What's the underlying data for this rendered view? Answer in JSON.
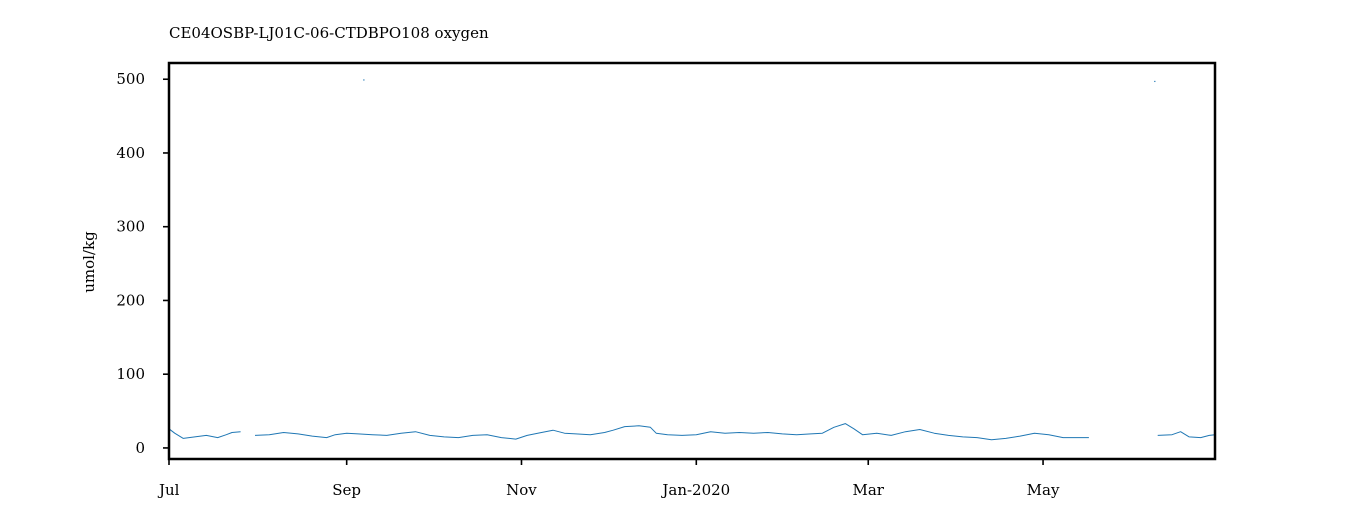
{
  "chart_data": {
    "type": "line",
    "title": "CE04OSBP-LJ01C-06-CTDBPO108 oxygen",
    "xlabel": "",
    "ylabel": "umol/kg",
    "xlim": [
      "2019-07-01",
      "2020-06-30"
    ],
    "ylim": [
      -15,
      522
    ],
    "yticks": [
      0,
      100,
      200,
      300,
      400,
      500
    ],
    "xticks": [
      {
        "date": "2019-07-01",
        "label": "Jul"
      },
      {
        "date": "2019-09-01",
        "label": "Sep"
      },
      {
        "date": "2019-11-01",
        "label": "Nov"
      },
      {
        "date": "2020-01-01",
        "label": "Jan-2020"
      },
      {
        "date": "2020-03-01",
        "label": "Mar"
      },
      {
        "date": "2020-05-01",
        "label": "May"
      }
    ],
    "grid": false,
    "series": [
      {
        "color": "#1f77b4",
        "segments": [
          [
            [
              "2019-07-01",
              26
            ],
            [
              "2019-07-03",
              20
            ],
            [
              "2019-07-06",
              13
            ],
            [
              "2019-07-10",
              15
            ],
            [
              "2019-07-14",
              17
            ],
            [
              "2019-07-18",
              14
            ],
            [
              "2019-07-21",
              18
            ],
            [
              "2019-07-23",
              21
            ],
            [
              "2019-07-26",
              22
            ]
          ],
          [
            [
              "2019-07-31",
              17
            ],
            [
              "2019-08-05",
              18
            ],
            [
              "2019-08-10",
              21
            ],
            [
              "2019-08-15",
              19
            ],
            [
              "2019-08-20",
              16
            ],
            [
              "2019-08-25",
              14
            ],
            [
              "2019-08-28",
              18
            ],
            [
              "2019-09-01",
              20
            ],
            [
              "2019-09-05",
              19
            ],
            [
              "2019-09-10",
              18
            ],
            [
              "2019-09-15",
              17
            ],
            [
              "2019-09-20",
              20
            ],
            [
              "2019-09-25",
              22
            ],
            [
              "2019-09-30",
              17
            ],
            [
              "2019-10-05",
              15
            ],
            [
              "2019-10-10",
              14
            ],
            [
              "2019-10-15",
              17
            ],
            [
              "2019-10-20",
              18
            ],
            [
              "2019-10-25",
              14
            ],
            [
              "2019-10-30",
              12
            ],
            [
              "2019-11-03",
              17
            ],
            [
              "2019-11-08",
              21
            ],
            [
              "2019-11-12",
              24
            ],
            [
              "2019-11-16",
              20
            ],
            [
              "2019-11-20",
              19
            ],
            [
              "2019-11-25",
              18
            ],
            [
              "2019-11-30",
              21
            ],
            [
              "2019-12-03",
              24
            ],
            [
              "2019-12-07",
              29
            ],
            [
              "2019-12-12",
              30
            ],
            [
              "2019-12-16",
              28
            ],
            [
              "2019-12-18",
              20
            ],
            [
              "2019-12-22",
              18
            ],
            [
              "2019-12-27",
              17
            ],
            [
              "2020-01-01",
              18
            ],
            [
              "2020-01-06",
              22
            ],
            [
              "2020-01-11",
              20
            ],
            [
              "2020-01-16",
              21
            ],
            [
              "2020-01-21",
              20
            ],
            [
              "2020-01-26",
              21
            ],
            [
              "2020-01-31",
              19
            ],
            [
              "2020-02-05",
              18
            ],
            [
              "2020-02-10",
              19
            ],
            [
              "2020-02-14",
              20
            ],
            [
              "2020-02-18",
              28
            ],
            [
              "2020-02-22",
              33
            ],
            [
              "2020-02-25",
              26
            ],
            [
              "2020-02-28",
              18
            ],
            [
              "2020-03-04",
              20
            ],
            [
              "2020-03-09",
              17
            ],
            [
              "2020-03-14",
              22
            ],
            [
              "2020-03-19",
              25
            ],
            [
              "2020-03-24",
              20
            ],
            [
              "2020-03-29",
              17
            ],
            [
              "2020-04-03",
              15
            ],
            [
              "2020-04-08",
              14
            ],
            [
              "2020-04-13",
              11
            ],
            [
              "2020-04-18",
              13
            ],
            [
              "2020-04-23",
              16
            ],
            [
              "2020-04-28",
              20
            ],
            [
              "2020-05-03",
              18
            ],
            [
              "2020-05-08",
              14
            ],
            [
              "2020-05-13",
              14
            ],
            [
              "2020-05-17",
              14
            ]
          ],
          [
            [
              "2020-06-10",
              17
            ],
            [
              "2020-06-15",
              18
            ],
            [
              "2020-06-18",
              22
            ],
            [
              "2020-06-21",
              15
            ],
            [
              "2020-06-25",
              14
            ],
            [
              "2020-06-28",
              17
            ],
            [
              "2020-06-30",
              18
            ]
          ]
        ],
        "outliers": [
          [
            "2019-09-07",
            499
          ],
          [
            "2020-06-09",
            497
          ]
        ]
      }
    ]
  }
}
